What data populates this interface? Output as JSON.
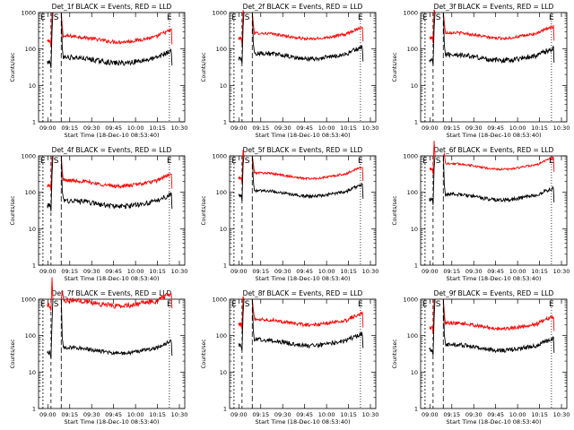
{
  "chart_data": [
    {
      "type": "line",
      "title": "Det_1f BLACK = Events, RED = LLD",
      "xlabel": "Start Time (18-Dec-10 08:53:40)",
      "ylabel": "Counts/sec",
      "yscale": "log",
      "ylim": [
        1,
        1000
      ],
      "xticks": [
        "09:00",
        "09:15",
        "09:30",
        "09:45",
        "10:00",
        "10:15",
        "10:30"
      ],
      "yticks": [
        "1",
        "10",
        "100",
        "1000"
      ],
      "event_labels": [
        "E",
        "S",
        "E"
      ],
      "series": [
        {
          "color": "#ff0000",
          "level": 190,
          "noise": 0.05
        },
        {
          "color": "#000000",
          "level": 50,
          "noise": 0.07
        }
      ]
    },
    {
      "type": "line",
      "title": "Det_2f BLACK = Events, RED = LLD",
      "xlabel": "Start Time (18-Dec-10 08:53:40)",
      "ylabel": "Counts/sec",
      "yscale": "log",
      "ylim": [
        1,
        1000
      ],
      "xticks": [
        "09:00",
        "09:15",
        "09:30",
        "09:45",
        "10:00",
        "10:15",
        "10:30"
      ],
      "yticks": [
        "1",
        "10",
        "100",
        "1000"
      ],
      "event_labels": [
        "E",
        "S",
        "E"
      ],
      "series": [
        {
          "color": "#ff0000",
          "level": 230,
          "noise": 0.04
        },
        {
          "color": "#000000",
          "level": 65,
          "noise": 0.06
        }
      ]
    },
    {
      "type": "line",
      "title": "Det_3f BLACK = Events, RED = LLD",
      "xlabel": "Start Time (18-Dec-10 08:53:40)",
      "ylabel": "Counts/sec",
      "yscale": "log",
      "ylim": [
        1,
        1000
      ],
      "xticks": [
        "09:00",
        "09:15",
        "09:30",
        "09:45",
        "10:00",
        "10:15",
        "10:30"
      ],
      "yticks": [
        "1",
        "10",
        "100",
        "1000"
      ],
      "event_labels": [
        "E",
        "S",
        "E"
      ],
      "series": [
        {
          "color": "#ff0000",
          "level": 240,
          "noise": 0.04
        },
        {
          "color": "#000000",
          "level": 60,
          "noise": 0.07
        }
      ]
    },
    {
      "type": "line",
      "title": "Det_4f BLACK = Events, RED = LLD",
      "xlabel": "Start Time (18-Dec-10 08:53:40)",
      "ylabel": "Counts/sec",
      "yscale": "log",
      "ylim": [
        1,
        1000
      ],
      "xticks": [
        "09:00",
        "09:15",
        "09:30",
        "09:45",
        "10:00",
        "10:15",
        "10:30"
      ],
      "yticks": [
        "1",
        "10",
        "100",
        "1000"
      ],
      "event_labels": [
        "E",
        "S",
        "E"
      ],
      "series": [
        {
          "color": "#ff0000",
          "level": 180,
          "noise": 0.05
        },
        {
          "color": "#000000",
          "level": 50,
          "noise": 0.07
        }
      ]
    },
    {
      "type": "line",
      "title": "Det_5f BLACK = Events, RED = LLD",
      "xlabel": "Start Time (18-Dec-10 08:53:40)",
      "ylabel": "Counts/sec",
      "yscale": "log",
      "ylim": [
        1,
        1000
      ],
      "xticks": [
        "09:00",
        "09:15",
        "09:30",
        "09:45",
        "10:00",
        "10:15",
        "10:30"
      ],
      "yticks": [
        "1",
        "10",
        "100",
        "1000"
      ],
      "event_labels": [
        "E",
        "S",
        "E"
      ],
      "series": [
        {
          "color": "#ff0000",
          "level": 290,
          "noise": 0.03
        },
        {
          "color": "#000000",
          "level": 95,
          "noise": 0.04
        }
      ]
    },
    {
      "type": "line",
      "title": "Det_6f BLACK = Events, RED = LLD",
      "xlabel": "Start Time (18-Dec-10 08:53:40)",
      "ylabel": "Counts/sec",
      "yscale": "log",
      "ylim": [
        1,
        1000
      ],
      "xticks": [
        "09:00",
        "09:15",
        "09:30",
        "09:45",
        "10:00",
        "10:15",
        "10:30"
      ],
      "yticks": [
        "1",
        "10",
        "100",
        "1000"
      ],
      "event_labels": [
        "E",
        "S",
        "E"
      ],
      "series": [
        {
          "color": "#ff0000",
          "level": 520,
          "noise": 0.03
        },
        {
          "color": "#000000",
          "level": 75,
          "noise": 0.05
        }
      ]
    },
    {
      "type": "line",
      "title": "Det_7f BLACK = Events, RED = LLD",
      "xlabel": "Start Time (18-Dec-10 08:53:40)",
      "ylabel": "Counts/sec",
      "yscale": "log",
      "ylim": [
        1,
        1000
      ],
      "xticks": [
        "09:00",
        "09:15",
        "09:30",
        "09:45",
        "10:00",
        "10:15",
        "10:30"
      ],
      "yticks": [
        "1",
        "10",
        "100",
        "1000"
      ],
      "event_labels": [
        "E",
        "S",
        "E"
      ],
      "series": [
        {
          "color": "#ff0000",
          "level": 800,
          "noise": 0.07
        },
        {
          "color": "#000000",
          "level": 40,
          "noise": 0.05
        }
      ]
    },
    {
      "type": "line",
      "title": "Det_8f BLACK = Events, RED = LLD",
      "xlabel": "Start Time (18-Dec-10 08:53:40)",
      "ylabel": "Counts/sec",
      "yscale": "log",
      "ylim": [
        1,
        1000
      ],
      "xticks": [
        "09:00",
        "09:15",
        "09:30",
        "09:45",
        "10:00",
        "10:15",
        "10:30"
      ],
      "yticks": [
        "1",
        "10",
        "100",
        "1000"
      ],
      "event_labels": [
        "E",
        "S",
        "E"
      ],
      "series": [
        {
          "color": "#ff0000",
          "level": 240,
          "noise": 0.05
        },
        {
          "color": "#000000",
          "level": 65,
          "noise": 0.06
        }
      ]
    },
    {
      "type": "line",
      "title": "Det_9f BLACK = Events, RED = LLD",
      "xlabel": "Start Time (18-Dec-10 08:53:40)",
      "ylabel": "Counts/sec",
      "yscale": "log",
      "ylim": [
        1,
        1000
      ],
      "xticks": [
        "09:00",
        "09:15",
        "09:30",
        "09:45",
        "10:00",
        "10:15",
        "10:30"
      ],
      "yticks": [
        "1",
        "10",
        "100",
        "1000"
      ],
      "event_labels": [
        "E",
        "S",
        "E"
      ],
      "series": [
        {
          "color": "#ff0000",
          "level": 190,
          "noise": 0.05
        },
        {
          "color": "#000000",
          "level": 48,
          "noise": 0.06
        }
      ]
    }
  ]
}
